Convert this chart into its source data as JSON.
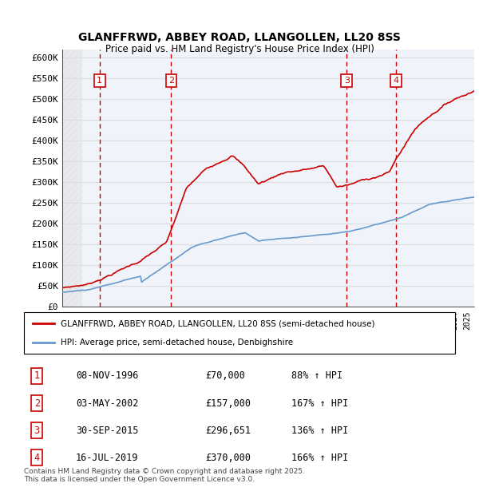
{
  "title": "GLANFFRWD, ABBEY ROAD, LLANGOLLEN, LL20 8SS",
  "subtitle": "Price paid vs. HM Land Registry's House Price Index (HPI)",
  "ylabel_ticks": [
    "£0",
    "£50K",
    "£100K",
    "£150K",
    "£200K",
    "£250K",
    "£300K",
    "£350K",
    "£400K",
    "£450K",
    "£500K",
    "£550K",
    "£600K"
  ],
  "ylim": [
    0,
    620000
  ],
  "ytick_vals": [
    0,
    50000,
    100000,
    150000,
    200000,
    250000,
    300000,
    350000,
    400000,
    450000,
    500000,
    550000,
    600000
  ],
  "xlim_start": 1994.0,
  "xlim_end": 2025.5,
  "sale_dates": [
    1996.85,
    2002.33,
    2015.75,
    2019.54
  ],
  "sale_prices": [
    70000,
    157000,
    296651,
    370000
  ],
  "sale_labels": [
    "1",
    "2",
    "3",
    "4"
  ],
  "red_line_color": "#cc0000",
  "blue_line_color": "#6699cc",
  "hatch_color": "#cccccc",
  "grid_color": "#dddddd",
  "vline_color": "#cc0000",
  "box_color": "#cc0000",
  "legend_entries": [
    "GLANFFRWD, ABBEY ROAD, LLANGOLLEN, LL20 8SS (semi-detached house)",
    "HPI: Average price, semi-detached house, Denbighshire"
  ],
  "table_data": [
    [
      "1",
      "08-NOV-1996",
      "£70,000",
      "88% ↑ HPI"
    ],
    [
      "2",
      "03-MAY-2002",
      "£157,000",
      "167% ↑ HPI"
    ],
    [
      "3",
      "30-SEP-2015",
      "£296,651",
      "136% ↑ HPI"
    ],
    [
      "4",
      "16-JUL-2019",
      "£370,000",
      "166% ↑ HPI"
    ]
  ],
  "footnote": "Contains HM Land Registry data © Crown copyright and database right 2025.\nThis data is licensed under the Open Government Licence v3.0.",
  "background_color": "#dce6f1"
}
